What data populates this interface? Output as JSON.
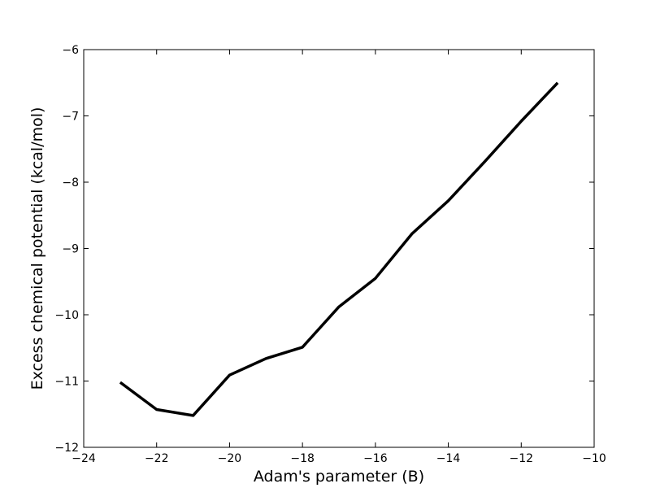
{
  "chart_data": {
    "type": "line",
    "title": "",
    "xlabel": "Adam's parameter (B)",
    "ylabel": "Excess chemical potential (kcal/mol)",
    "xlim": [
      -24,
      -10
    ],
    "ylim": [
      -12,
      -6
    ],
    "xticks": [
      -24,
      -22,
      -20,
      -18,
      -16,
      -14,
      -12,
      -10
    ],
    "yticks": [
      -12,
      -11,
      -10,
      -9,
      -8,
      -7,
      -6
    ],
    "xtick_labels": [
      "−24",
      "−22",
      "−20",
      "−18",
      "−16",
      "−14",
      "−12",
      "−10"
    ],
    "ytick_labels": [
      "−12",
      "−11",
      "−10",
      "−9",
      "−8",
      "−7",
      "−6"
    ],
    "grid": false,
    "legend": "none",
    "series": [
      {
        "color": "#000000",
        "x": [
          -23,
          -22,
          -21,
          -20,
          -19,
          -18,
          -17,
          -16,
          -15,
          -14,
          -13,
          -12,
          -11
        ],
        "y": [
          -11.02,
          -11.43,
          -11.52,
          -10.91,
          -10.66,
          -10.49,
          -9.88,
          -9.45,
          -8.78,
          -8.28,
          -7.69,
          -7.08,
          -6.5
        ]
      }
    ]
  }
}
